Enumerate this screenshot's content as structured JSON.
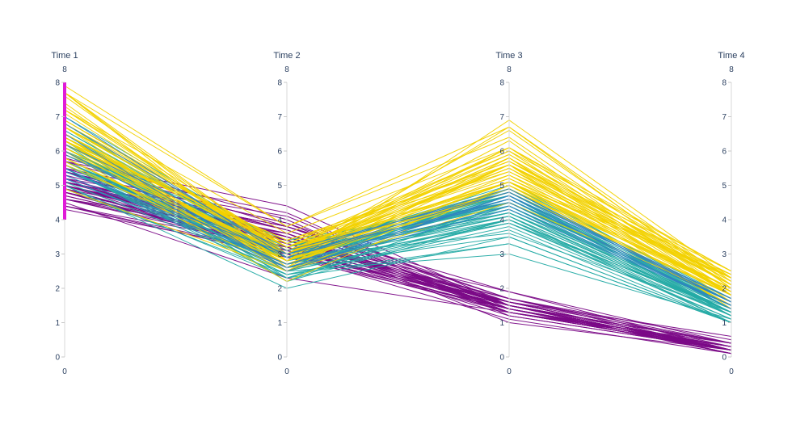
{
  "chart_data": {
    "type": "parallel-coordinates",
    "title": "",
    "dimensions": [
      {
        "label": "Time 1",
        "range": [
          0,
          8
        ],
        "range_labels": {
          "min": "0",
          "max": "8"
        },
        "ticks": [
          0,
          1,
          2,
          3,
          4,
          5,
          6,
          7,
          8
        ],
        "constraint_range": [
          4,
          8
        ]
      },
      {
        "label": "Time 2",
        "range": [
          0,
          8
        ],
        "range_labels": {
          "min": "0",
          "max": "8"
        },
        "ticks": [
          0,
          1,
          2,
          3,
          4,
          5,
          6,
          7,
          8
        ]
      },
      {
        "label": "Time 3",
        "range": [
          0,
          8
        ],
        "range_labels": {
          "min": "0",
          "max": "8"
        },
        "ticks": [
          0,
          1,
          2,
          3,
          4,
          5,
          6,
          7,
          8
        ]
      },
      {
        "label": "Time 4",
        "range": [
          0,
          8
        ],
        "range_labels": {
          "min": "0",
          "max": "8"
        },
        "ticks": [
          0,
          1,
          2,
          3,
          4,
          5,
          6,
          7,
          8
        ]
      }
    ],
    "colors": {
      "purple": "#7b0a87",
      "teal": "#25aba5",
      "blue": "#2f84c0",
      "yellow": "#f2d200",
      "constraint": "#e01ad8",
      "axis": "#d9d9d9",
      "text": "#2a3f5f"
    },
    "groups": [
      {
        "color": "purple",
        "lines": [
          [
            5.1,
            3.5,
            1.4,
            0.2
          ],
          [
            4.9,
            3.0,
            1.4,
            0.2
          ],
          [
            4.7,
            3.2,
            1.3,
            0.2
          ],
          [
            4.6,
            3.1,
            1.5,
            0.2
          ],
          [
            5.0,
            3.6,
            1.4,
            0.2
          ],
          [
            5.4,
            3.9,
            1.7,
            0.4
          ],
          [
            4.6,
            3.4,
            1.4,
            0.3
          ],
          [
            5.0,
            3.4,
            1.5,
            0.2
          ],
          [
            4.4,
            2.9,
            1.4,
            0.2
          ],
          [
            4.9,
            3.1,
            1.5,
            0.1
          ],
          [
            5.4,
            3.7,
            1.5,
            0.2
          ],
          [
            4.8,
            3.4,
            1.6,
            0.2
          ],
          [
            4.8,
            3.0,
            1.4,
            0.1
          ],
          [
            4.3,
            3.0,
            1.1,
            0.1
          ],
          [
            5.8,
            4.0,
            1.2,
            0.2
          ],
          [
            5.7,
            4.4,
            1.5,
            0.4
          ],
          [
            5.4,
            3.9,
            1.3,
            0.4
          ],
          [
            5.1,
            3.5,
            1.4,
            0.3
          ],
          [
            5.7,
            3.8,
            1.7,
            0.3
          ],
          [
            5.1,
            3.8,
            1.5,
            0.3
          ],
          [
            5.4,
            3.4,
            1.7,
            0.2
          ],
          [
            5.1,
            3.7,
            1.5,
            0.4
          ],
          [
            4.6,
            3.6,
            1.0,
            0.2
          ],
          [
            5.1,
            3.3,
            1.7,
            0.5
          ],
          [
            4.8,
            3.4,
            1.9,
            0.2
          ],
          [
            5.0,
            3.0,
            1.6,
            0.2
          ],
          [
            5.0,
            3.4,
            1.6,
            0.4
          ],
          [
            5.2,
            3.5,
            1.5,
            0.2
          ],
          [
            5.2,
            3.4,
            1.4,
            0.2
          ],
          [
            4.7,
            3.2,
            1.6,
            0.2
          ],
          [
            4.8,
            3.1,
            1.6,
            0.2
          ],
          [
            5.4,
            3.4,
            1.5,
            0.4
          ],
          [
            5.2,
            4.1,
            1.5,
            0.1
          ],
          [
            5.5,
            4.2,
            1.4,
            0.2
          ],
          [
            4.9,
            3.1,
            1.5,
            0.2
          ],
          [
            5.0,
            3.2,
            1.2,
            0.2
          ],
          [
            5.5,
            3.5,
            1.3,
            0.2
          ],
          [
            4.9,
            3.6,
            1.4,
            0.1
          ],
          [
            4.4,
            3.0,
            1.3,
            0.2
          ],
          [
            5.1,
            3.4,
            1.5,
            0.2
          ],
          [
            5.0,
            3.5,
            1.3,
            0.3
          ],
          [
            4.5,
            2.3,
            1.3,
            0.3
          ],
          [
            4.4,
            3.2,
            1.3,
            0.2
          ],
          [
            5.0,
            3.5,
            1.6,
            0.6
          ],
          [
            5.1,
            3.8,
            1.9,
            0.4
          ],
          [
            4.8,
            3.0,
            1.4,
            0.3
          ],
          [
            5.1,
            3.8,
            1.6,
            0.2
          ],
          [
            4.6,
            3.2,
            1.4,
            0.2
          ],
          [
            5.3,
            3.7,
            1.5,
            0.2
          ],
          [
            5.0,
            3.3,
            1.4,
            0.2
          ]
        ]
      },
      {
        "color": "teal",
        "lines": [
          [
            7.0,
            3.2,
            4.7,
            1.4
          ],
          [
            6.4,
            3.2,
            4.5,
            1.5
          ],
          [
            6.9,
            3.1,
            4.9,
            1.5
          ],
          [
            5.5,
            2.3,
            4.0,
            1.3
          ],
          [
            6.5,
            2.8,
            4.6,
            1.5
          ],
          [
            5.7,
            2.8,
            4.5,
            1.3
          ],
          [
            6.3,
            3.3,
            4.7,
            1.6
          ],
          [
            4.9,
            2.4,
            3.3,
            1.0
          ],
          [
            6.6,
            2.9,
            4.6,
            1.3
          ],
          [
            5.2,
            2.7,
            3.9,
            1.4
          ],
          [
            5.0,
            2.0,
            3.5,
            1.0
          ],
          [
            5.9,
            3.0,
            4.2,
            1.5
          ],
          [
            6.0,
            2.2,
            4.0,
            1.0
          ],
          [
            6.1,
            2.9,
            4.7,
            1.4
          ],
          [
            5.6,
            2.9,
            3.6,
            1.3
          ],
          [
            6.7,
            3.1,
            4.4,
            1.4
          ],
          [
            5.6,
            3.0,
            4.5,
            1.5
          ],
          [
            5.8,
            2.7,
            4.1,
            1.0
          ],
          [
            6.2,
            2.2,
            4.5,
            1.5
          ],
          [
            5.6,
            2.5,
            3.9,
            1.1
          ],
          [
            5.9,
            3.2,
            4.8,
            1.8
          ],
          [
            6.1,
            2.8,
            4.0,
            1.3
          ],
          [
            6.3,
            2.5,
            4.9,
            1.5
          ],
          [
            6.1,
            2.8,
            4.7,
            1.2
          ],
          [
            6.4,
            2.9,
            4.3,
            1.3
          ],
          [
            6.6,
            3.0,
            4.4,
            1.4
          ],
          [
            6.8,
            2.8,
            4.8,
            1.4
          ],
          [
            6.7,
            3.0,
            5.0,
            1.7
          ],
          [
            6.0,
            2.9,
            4.5,
            1.5
          ],
          [
            5.7,
            2.6,
            3.5,
            1.0
          ],
          [
            5.5,
            2.4,
            3.8,
            1.1
          ],
          [
            5.5,
            2.4,
            3.7,
            1.0
          ],
          [
            5.8,
            2.7,
            3.9,
            1.2
          ],
          [
            6.0,
            2.7,
            5.1,
            1.6
          ],
          [
            5.4,
            3.0,
            4.5,
            1.5
          ],
          [
            6.0,
            3.4,
            4.5,
            1.6
          ],
          [
            6.7,
            3.1,
            4.7,
            1.5
          ],
          [
            6.3,
            2.3,
            4.4,
            1.3
          ],
          [
            5.6,
            3.0,
            4.1,
            1.3
          ],
          [
            5.5,
            2.5,
            4.0,
            1.3
          ],
          [
            5.5,
            2.6,
            4.4,
            1.2
          ],
          [
            6.1,
            3.0,
            4.6,
            1.4
          ],
          [
            5.8,
            2.6,
            4.0,
            1.2
          ],
          [
            5.0,
            2.3,
            3.3,
            1.0
          ],
          [
            5.6,
            2.7,
            4.2,
            1.3
          ],
          [
            5.7,
            3.0,
            4.2,
            1.2
          ],
          [
            5.7,
            2.9,
            4.2,
            1.3
          ],
          [
            6.2,
            2.9,
            4.3,
            1.3
          ],
          [
            5.1,
            2.5,
            3.0,
            1.1
          ],
          [
            5.7,
            2.8,
            4.1,
            1.3
          ]
        ]
      },
      {
        "color": "yellow",
        "lines": [
          [
            6.3,
            3.3,
            6.0,
            2.5
          ],
          [
            5.8,
            2.7,
            5.1,
            1.9
          ],
          [
            7.1,
            3.0,
            5.9,
            2.1
          ],
          [
            6.3,
            2.9,
            5.6,
            1.8
          ],
          [
            6.5,
            3.0,
            5.8,
            2.2
          ],
          [
            7.6,
            3.0,
            6.6,
            2.1
          ],
          [
            4.9,
            2.5,
            4.5,
            1.7
          ],
          [
            7.3,
            2.9,
            6.3,
            1.8
          ],
          [
            6.7,
            2.5,
            5.8,
            1.8
          ],
          [
            7.2,
            3.6,
            6.1,
            2.5
          ],
          [
            6.5,
            3.2,
            5.1,
            2.0
          ],
          [
            6.4,
            2.7,
            5.3,
            1.9
          ],
          [
            6.8,
            3.0,
            5.5,
            2.1
          ],
          [
            5.7,
            2.5,
            5.0,
            2.0
          ],
          [
            5.8,
            2.8,
            5.1,
            2.4
          ],
          [
            6.4,
            3.2,
            5.3,
            2.3
          ],
          [
            6.5,
            3.0,
            5.5,
            1.8
          ],
          [
            7.7,
            3.8,
            6.7,
            2.2
          ],
          [
            7.7,
            2.6,
            6.9,
            2.3
          ],
          [
            6.0,
            2.2,
            5.0,
            1.5
          ],
          [
            6.9,
            3.2,
            5.7,
            2.3
          ],
          [
            5.6,
            2.8,
            4.9,
            2.0
          ],
          [
            7.7,
            2.8,
            6.7,
            2.0
          ],
          [
            6.3,
            2.7,
            4.9,
            1.8
          ],
          [
            6.7,
            3.3,
            5.7,
            2.1
          ],
          [
            7.2,
            3.2,
            6.0,
            1.8
          ],
          [
            6.2,
            2.8,
            4.8,
            1.8
          ],
          [
            6.1,
            3.0,
            4.9,
            1.8
          ],
          [
            6.4,
            2.8,
            5.6,
            2.1
          ],
          [
            7.2,
            3.0,
            5.8,
            1.6
          ],
          [
            7.4,
            2.8,
            6.1,
            1.9
          ],
          [
            7.9,
            3.8,
            6.4,
            2.0
          ],
          [
            6.4,
            2.8,
            5.6,
            2.2
          ],
          [
            6.3,
            2.8,
            5.1,
            1.5
          ],
          [
            6.1,
            2.6,
            5.6,
            1.4
          ],
          [
            7.7,
            3.0,
            6.1,
            2.3
          ],
          [
            6.3,
            3.4,
            5.6,
            2.4
          ],
          [
            6.4,
            3.1,
            5.5,
            1.8
          ],
          [
            6.0,
            3.0,
            4.8,
            1.8
          ],
          [
            6.9,
            3.1,
            5.4,
            2.1
          ],
          [
            6.7,
            3.1,
            5.6,
            2.4
          ],
          [
            6.9,
            3.1,
            5.1,
            2.3
          ],
          [
            5.8,
            2.7,
            5.1,
            1.9
          ],
          [
            6.8,
            3.2,
            5.9,
            2.3
          ],
          [
            6.7,
            3.3,
            5.7,
            2.5
          ],
          [
            6.7,
            3.0,
            5.2,
            2.3
          ],
          [
            6.3,
            2.5,
            5.0,
            1.9
          ],
          [
            6.5,
            3.0,
            5.2,
            2.0
          ],
          [
            6.2,
            3.4,
            5.4,
            2.3
          ],
          [
            5.9,
            3.0,
            5.1,
            1.8
          ]
        ]
      },
      {
        "color": "blue",
        "lines": [
          [
            5.4,
            3.0,
            4.5,
            1.5
          ],
          [
            6.0,
            2.6,
            4.7,
            1.4
          ],
          [
            5.5,
            2.7,
            4.6,
            1.6
          ],
          [
            7.0,
            2.9,
            4.8,
            1.6
          ],
          [
            5.2,
            2.6,
            4.3,
            1.5
          ],
          [
            6.5,
            2.5,
            4.7,
            1.7
          ],
          [
            5.9,
            2.9,
            4.6,
            1.6
          ],
          [
            6.2,
            3.1,
            4.8,
            1.7
          ],
          [
            5.3,
            2.7,
            4.4,
            1.5
          ],
          [
            6.8,
            3.0,
            4.9,
            1.6
          ]
        ]
      }
    ]
  }
}
